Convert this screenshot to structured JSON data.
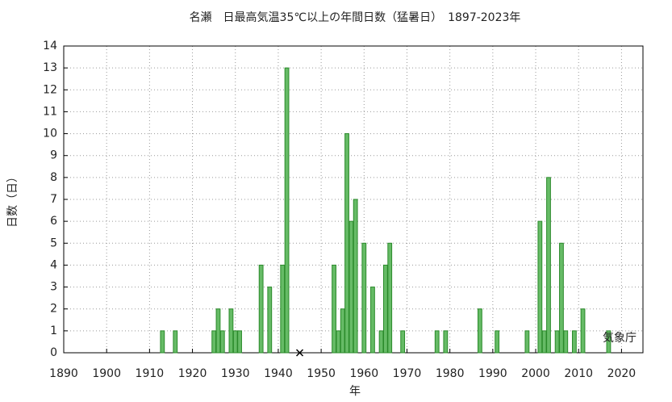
{
  "chart_data": {
    "type": "bar",
    "title": "名瀬　日最高気温35℃以上の年間日数（猛暑日）　1897-2023年",
    "x_label": "年",
    "y_label": "日数（日）",
    "annotation": "気象庁",
    "x": [
      1913,
      1916,
      1925,
      1926,
      1927,
      1929,
      1930,
      1931,
      1936,
      1938,
      1941,
      1942,
      1953,
      1954,
      1955,
      1956,
      1957,
      1958,
      1960,
      1962,
      1964,
      1965,
      1966,
      1969,
      1977,
      1979,
      1987,
      1991,
      1998,
      2001,
      2002,
      2003,
      2005,
      2006,
      2007,
      2009,
      2011,
      2017
    ],
    "values": [
      1,
      1,
      1,
      2,
      1,
      2,
      1,
      1,
      4,
      3,
      4,
      13,
      4,
      1,
      2,
      10,
      6,
      7,
      5,
      3,
      1,
      4,
      5,
      1,
      1,
      1,
      2,
      1,
      1,
      6,
      1,
      8,
      1,
      5,
      1,
      1,
      2,
      1
    ],
    "missing_x": [
      1945
    ],
    "color": "#66bb66",
    "edge_color": "#2a8a2a",
    "xlim": [
      1890,
      2025
    ],
    "ylim": [
      0,
      14
    ],
    "xticks": [
      1890,
      1900,
      1910,
      1920,
      1930,
      1940,
      1950,
      1960,
      1970,
      1980,
      1990,
      2000,
      2010,
      2020
    ],
    "yticks": [
      0,
      1,
      2,
      3,
      4,
      5,
      6,
      7,
      8,
      9,
      10,
      11,
      12,
      13,
      14
    ],
    "grid": true
  }
}
